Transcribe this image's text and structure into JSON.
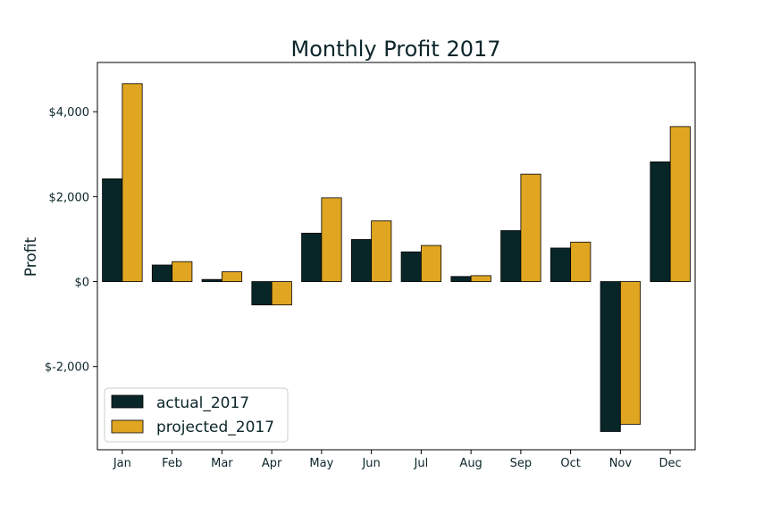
{
  "colors": {
    "actual": "#082628",
    "projected": "#E0A521",
    "text": "#0b2529",
    "edge": "#000000"
  },
  "chart_data": {
    "type": "bar",
    "title": "Monthly Profit 2017",
    "xlabel": "",
    "ylabel": "Profit",
    "categories": [
      "Jan",
      "Feb",
      "Mar",
      "Apr",
      "May",
      "Jun",
      "Jul",
      "Aug",
      "Sep",
      "Oct",
      "Nov",
      "Dec"
    ],
    "series": [
      {
        "name": "actual_2017",
        "values": [
          2420,
          390,
          50,
          -550,
          1140,
          990,
          700,
          120,
          1200,
          790,
          -3530,
          2820
        ]
      },
      {
        "name": "projected_2017",
        "values": [
          4660,
          470,
          230,
          -550,
          1970,
          1430,
          850,
          140,
          2530,
          930,
          -3360,
          3650
        ]
      }
    ],
    "ylim": [
      -3960,
      5160
    ],
    "yticks": [
      -2000,
      0,
      2000,
      4000
    ],
    "ytick_labels": [
      "$-2,000",
      "$0",
      "$2,000",
      "$4,000"
    ],
    "grid": false,
    "legend": "lower-left"
  }
}
